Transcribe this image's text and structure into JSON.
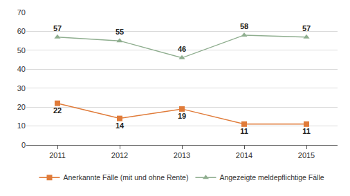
{
  "chart_data": {
    "type": "line",
    "categories": [
      "2011",
      "2012",
      "2013",
      "2014",
      "2015"
    ],
    "series": [
      {
        "name": "Anerkannte Fälle (mit und ohne Rente)",
        "color": "#e07b39",
        "marker": "square",
        "values": [
          22,
          14,
          19,
          11,
          11
        ]
      },
      {
        "name": "Angezeigte meldepflichtige Fälle",
        "color": "#8fae8f",
        "marker": "triangle-up",
        "values": [
          57,
          55,
          46,
          58,
          57
        ]
      }
    ],
    "ylim": [
      0,
      70
    ],
    "yticks": [
      0,
      10,
      20,
      30,
      40,
      50,
      60,
      70
    ],
    "grid": true,
    "data_labels": true,
    "legend": "bottom"
  }
}
